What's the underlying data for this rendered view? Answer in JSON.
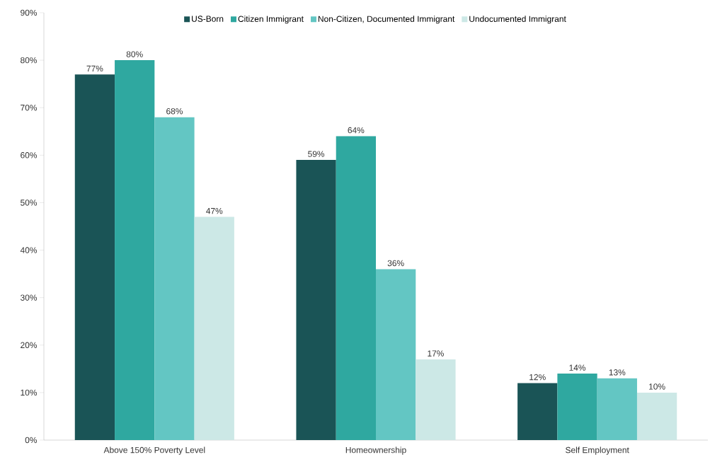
{
  "chart_data": {
    "type": "bar",
    "categories": [
      "Above 150% Poverty Level",
      "Homeownership",
      "Self Employment"
    ],
    "series": [
      {
        "name": "US-Born",
        "color": "#1a5456",
        "values": [
          77,
          59,
          12
        ],
        "value_labels": [
          "77%",
          "59%",
          "12%"
        ]
      },
      {
        "name": "Citizen Immigrant",
        "color": "#2fa8a0",
        "values": [
          80,
          64,
          14
        ],
        "value_labels": [
          "80%",
          "64%",
          "14%"
        ]
      },
      {
        "name": "Non-Citizen, Documented Immigrant",
        "color": "#63c6c3",
        "values": [
          68,
          36,
          13
        ],
        "value_labels": [
          "68%",
          "36%",
          "13%"
        ]
      },
      {
        "name": "Undocumented Immigrant",
        "color": "#cce8e6",
        "values": [
          47,
          17,
          10
        ],
        "value_labels": [
          "47%",
          "17%",
          "10%"
        ]
      }
    ],
    "ylim": [
      0,
      90
    ],
    "yticks": [
      {
        "value": 0,
        "label": "0%"
      },
      {
        "value": 10,
        "label": "10%"
      },
      {
        "value": 20,
        "label": "20%"
      },
      {
        "value": 30,
        "label": "30%"
      },
      {
        "value": 40,
        "label": "40%"
      },
      {
        "value": 50,
        "label": "50%"
      },
      {
        "value": 60,
        "label": "60%"
      },
      {
        "value": 70,
        "label": "70%"
      },
      {
        "value": 80,
        "label": "80%"
      },
      {
        "value": 90,
        "label": "90%"
      }
    ],
    "legend": "top",
    "grid": false
  }
}
